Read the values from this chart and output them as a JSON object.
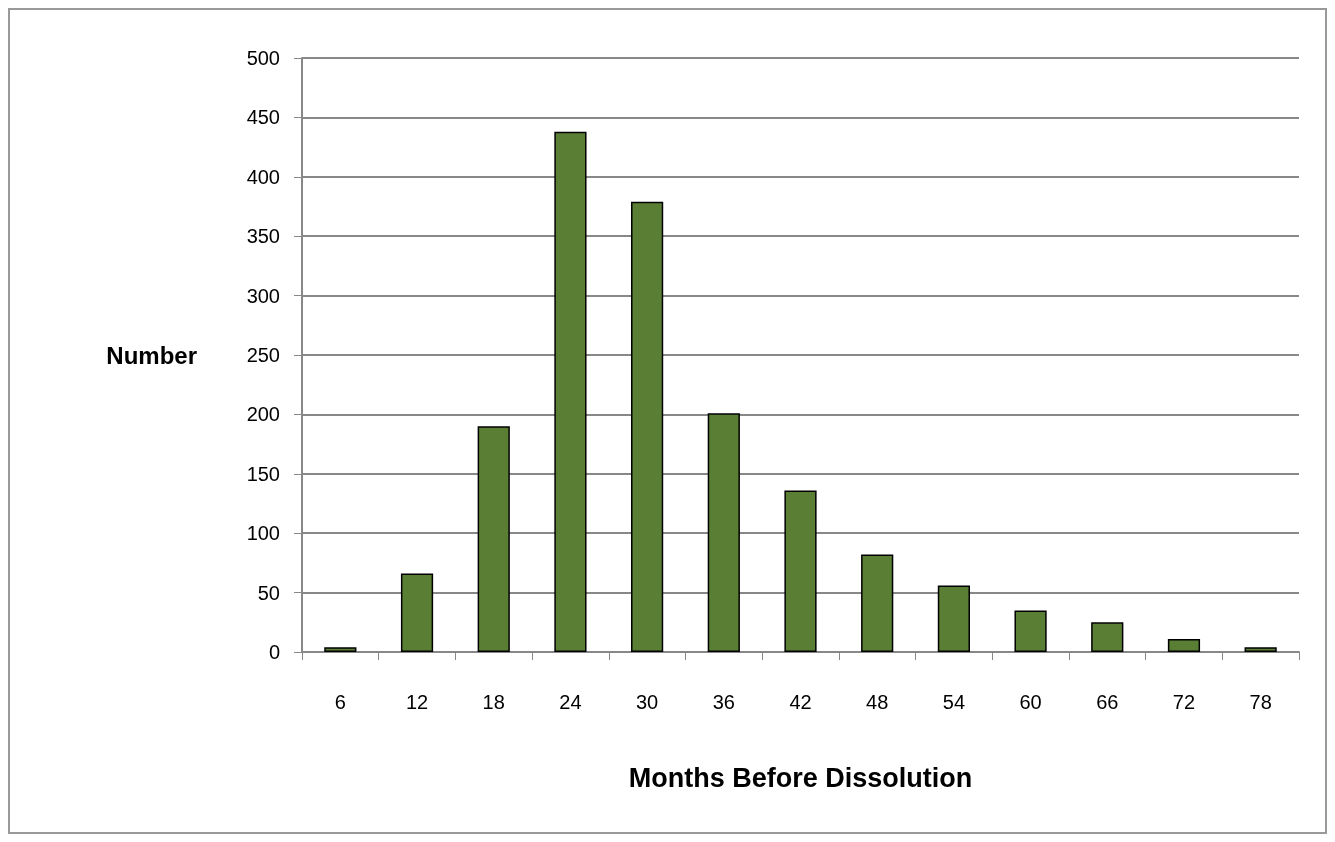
{
  "chart_data": {
    "type": "bar",
    "xlabel": "Months Before Dissolution",
    "ylabel": "Number",
    "categories": [
      "6",
      "12",
      "18",
      "24",
      "30",
      "36",
      "42",
      "48",
      "54",
      "60",
      "66",
      "72",
      "78"
    ],
    "values": [
      4,
      66,
      190,
      438,
      379,
      201,
      136,
      82,
      56,
      35,
      25,
      11,
      4
    ],
    "color": "#5a7f34",
    "ylim": [
      0,
      500
    ],
    "yticks": [
      0,
      50,
      100,
      150,
      200,
      250,
      300,
      350,
      400,
      450,
      500
    ],
    "grid": "y"
  }
}
